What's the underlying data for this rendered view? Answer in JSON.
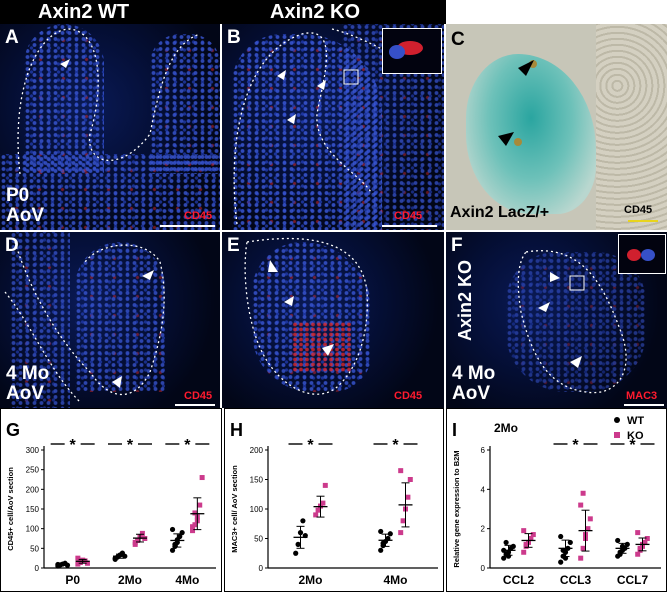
{
  "header": {
    "wt": "Axin2 WT",
    "ko": "Axin2 KO"
  },
  "panels": {
    "A": {
      "letter": "A",
      "line1": "P0",
      "line2": "AoV",
      "stain": "CD45"
    },
    "B": {
      "letter": "B",
      "stain": "CD45"
    },
    "C": {
      "letter": "C",
      "caption": "Axin2 LacZ/+",
      "stain": "CD45"
    },
    "D": {
      "letter": "D",
      "line1": "4 Mo",
      "line2": "AoV",
      "stain": "CD45"
    },
    "E": {
      "letter": "E",
      "stain": "CD45"
    },
    "F": {
      "letter": "F",
      "vertical": "Axin2 KO",
      "line1": "4 Mo",
      "line2": "AoV",
      "stain": "MAC3"
    }
  },
  "colors": {
    "wt": "#000000",
    "ko": "#cc3a8c",
    "lacz": "#2aa5a0",
    "stain": "#ff1a2e"
  },
  "chart_data": [
    {
      "type": "scatter",
      "letter": "G",
      "ylabel": "CD45+ cell/AoV section",
      "categories": [
        "P0",
        "2Mo",
        "4Mo"
      ],
      "ylim": [
        0,
        300
      ],
      "yticks": [
        "0",
        "50",
        "100",
        "150",
        "200",
        "250",
        "300"
      ],
      "significance": [
        "*",
        "*",
        "*"
      ],
      "series": [
        {
          "name": "WT",
          "groups": [
            [
              5,
              8,
              10,
              12,
              7,
              9
            ],
            [
              22,
              28,
              33,
              38,
              30,
              25
            ],
            [
              45,
              60,
              72,
              80,
              90,
              98,
              55,
              65
            ]
          ],
          "mean": [
            9,
            30,
            70
          ]
        },
        {
          "name": "KO",
          "groups": [
            [
              10,
              15,
              20,
              18,
              12,
              25,
              14
            ],
            [
              60,
              70,
              80,
              88,
              75,
              65
            ],
            [
              95,
              110,
              130,
              160,
              230,
              105,
              140,
              120
            ]
          ],
          "mean": [
            17,
            76,
            138
          ]
        }
      ]
    },
    {
      "type": "scatter",
      "letter": "H",
      "ylabel": "MAC3+ cell/ AoV section",
      "categories": [
        "2Mo",
        "4Mo"
      ],
      "ylim": [
        0,
        200
      ],
      "yticks": [
        "0",
        "50",
        "100",
        "150",
        "200"
      ],
      "significance": [
        "*",
        "*"
      ],
      "series": [
        {
          "name": "WT",
          "groups": [
            [
              25,
              40,
              60,
              80,
              55
            ],
            [
              30,
              38,
              45,
              50,
              58,
              62,
              42
            ]
          ],
          "mean": [
            52,
            47
          ]
        },
        {
          "name": "KO",
          "groups": [
            [
              90,
              98,
              105,
              110,
              140
            ],
            [
              60,
              80,
              100,
              120,
              150,
              165
            ]
          ],
          "mean": [
            104,
            107
          ]
        }
      ]
    },
    {
      "type": "scatter",
      "letter": "I",
      "title": "2Mo",
      "ylabel": "Relative gene expression to B2M",
      "categories": [
        "CCL2",
        "CCL3",
        "CCL7"
      ],
      "ylim": [
        0,
        6
      ],
      "yticks": [
        "0",
        "2",
        "4",
        "6"
      ],
      "significance": [
        "",
        "*",
        "*"
      ],
      "legend": [
        "WT",
        "KO"
      ],
      "series": [
        {
          "name": "WT",
          "groups": [
            [
              0.5,
              0.7,
              0.8,
              1.0,
              1.1,
              0.9,
              1.3,
              0.6
            ],
            [
              0.3,
              0.6,
              0.8,
              1.0,
              1.3,
              1.6,
              0.9,
              0.5
            ],
            [
              0.6,
              0.8,
              0.9,
              1.0,
              1.2,
              1.4,
              0.7,
              1.1
            ]
          ],
          "mean": [
            0.9,
            1.0,
            1.0
          ]
        },
        {
          "name": "KO",
          "groups": [
            [
              0.8,
              1.1,
              1.3,
              1.5,
              1.7,
              1.9,
              1.2
            ],
            [
              0.5,
              1.0,
              1.5,
              2.0,
              2.5,
              3.2,
              3.8,
              1.7
            ],
            [
              0.7,
              0.9,
              1.1,
              1.3,
              1.5,
              1.8,
              1.0,
              1.2
            ]
          ],
          "mean": [
            1.4,
            1.9,
            1.2
          ]
        }
      ]
    }
  ]
}
